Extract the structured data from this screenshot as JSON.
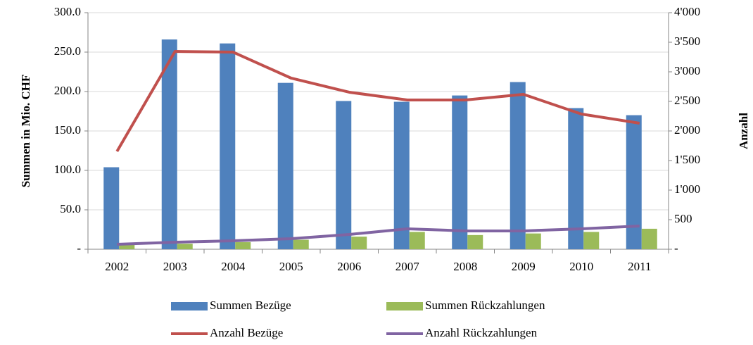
{
  "chart_data": {
    "type": "bar",
    "y_label": "Summen in Mio. CHF",
    "y2_label": "Anzahl",
    "categories": [
      "2002",
      "2003",
      "2004",
      "2005",
      "2006",
      "2007",
      "2008",
      "2009",
      "2010",
      "2011"
    ],
    "series": [
      {
        "name": "Summen Bezüge",
        "type": "bar",
        "color": "#4f81bd",
        "values": [
          104,
          266,
          261,
          211,
          188,
          187,
          195,
          212,
          179,
          170
        ]
      },
      {
        "name": "Summen Rückzahlungen",
        "type": "bar",
        "color": "#9bbb59",
        "values": [
          7,
          7,
          9,
          12,
          16,
          22,
          18,
          20,
          22,
          26
        ]
      },
      {
        "name": "Anzahl Bezüge",
        "type": "line",
        "axis": "y2",
        "color": "#c0504d",
        "values": [
          1655,
          3345,
          3333,
          2893,
          2655,
          2524,
          2524,
          2619,
          2286,
          2131
        ]
      },
      {
        "name": "Anzahl Rückzahlungen",
        "type": "line",
        "axis": "y2",
        "color": "#8064a2",
        "values": [
          83,
          119,
          143,
          179,
          250,
          345,
          310,
          310,
          345,
          393
        ]
      }
    ],
    "ylim": [
      0,
      300
    ],
    "yticks": [
      {
        "value": 0,
        "label": "-"
      },
      {
        "value": 50,
        "label": "50.0"
      },
      {
        "value": 100,
        "label": "100.0"
      },
      {
        "value": 150,
        "label": "150.0"
      },
      {
        "value": 200,
        "label": "200.0"
      },
      {
        "value": 250,
        "label": "250.0"
      },
      {
        "value": 300,
        "label": "300.0"
      }
    ],
    "y2lim": [
      0,
      4000
    ],
    "y2ticks": [
      {
        "value": 0,
        "label": "-"
      },
      500,
      {
        "value": 1000,
        "label": "1'000"
      },
      {
        "value": 1500,
        "label": "1'500"
      },
      {
        "value": 2000,
        "label": "2'000"
      },
      {
        "value": 2500,
        "label": "2'500"
      },
      {
        "value": 3000,
        "label": "3'000"
      },
      {
        "value": 3500,
        "label": "3'500"
      },
      {
        "value": 4000,
        "label": "4'000"
      }
    ],
    "grid": true,
    "legend": "bottom"
  }
}
